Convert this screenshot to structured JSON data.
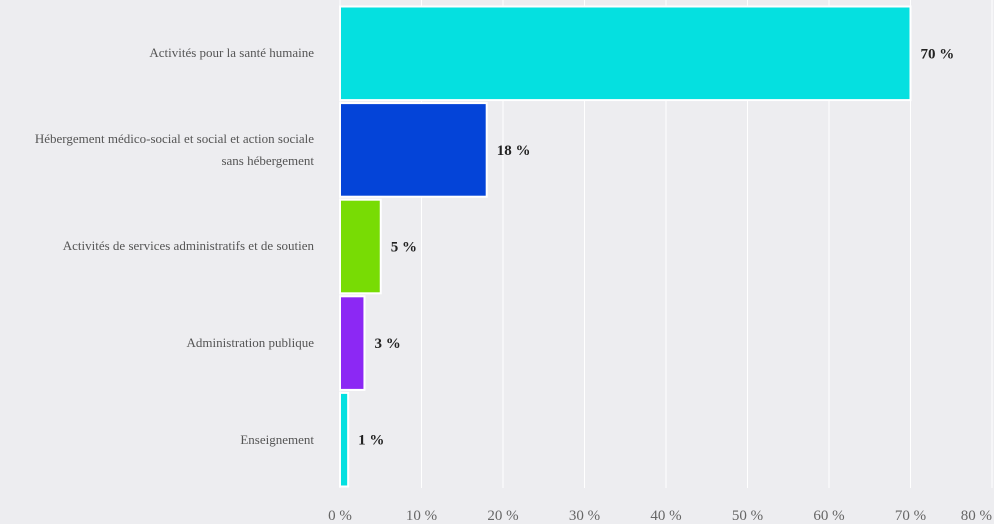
{
  "chart_data": {
    "type": "bar",
    "orientation": "horizontal",
    "categories": [
      "Activités pour la santé humaine",
      "Hébergement médico-social et social et action sociale sans hébergement",
      "Activités de services administratifs et de soutien",
      "Administration publique",
      "Enseignement"
    ],
    "values": [
      70,
      18,
      5,
      3,
      1
    ],
    "value_labels": [
      "70 %",
      "18 %",
      "5 %",
      "3 %",
      "1 %"
    ],
    "colors": [
      "#05e0e0",
      "#0444d8",
      "#78dc04",
      "#8c28f4",
      "#05e0e0"
    ],
    "xlim": [
      0,
      80
    ],
    "xticks": [
      {
        "value": 0,
        "label": "0 %"
      },
      {
        "value": 10,
        "label": "10 %"
      },
      {
        "value": 20,
        "label": "20 %"
      },
      {
        "value": 30,
        "label": "30 %"
      },
      {
        "value": 40,
        "label": "40 %"
      },
      {
        "value": 50,
        "label": "50 %"
      },
      {
        "value": 60,
        "label": "60 %"
      },
      {
        "value": 70,
        "label": "70 %"
      },
      {
        "value": 80,
        "label": "80 %"
      }
    ],
    "grid": true
  }
}
